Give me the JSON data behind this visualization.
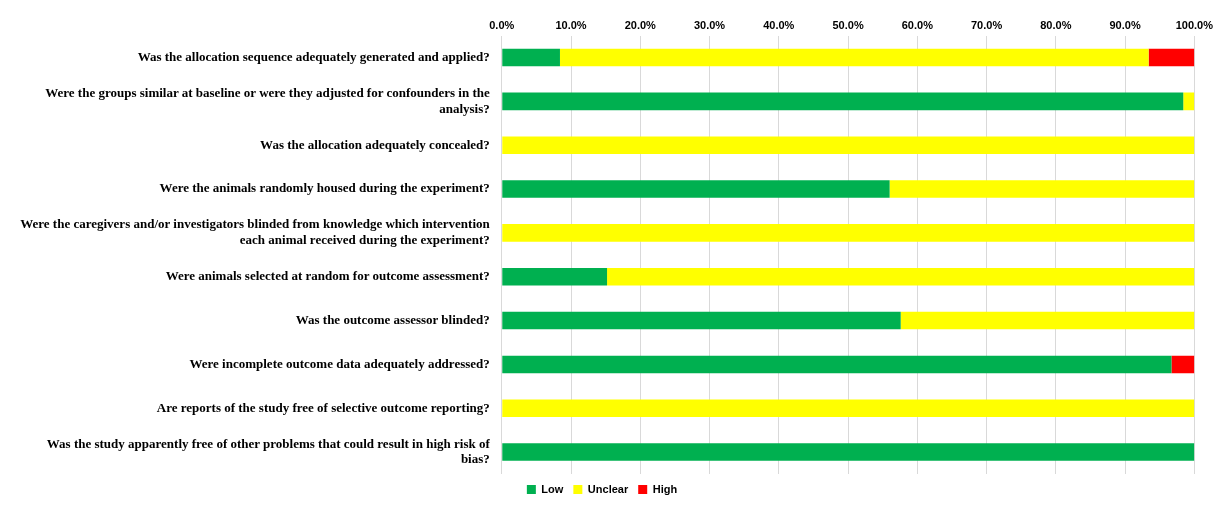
{
  "chart_data": {
    "type": "bar",
    "orientation": "horizontal",
    "stacked": true,
    "categories": [
      "Was the allocation sequence adequately generated and applied?",
      "Were the groups similar at baseline or were they adjusted for confounders in the analysis?",
      "Was the allocation adequately concealed?",
      "Were the animals randomly housed during the experiment?",
      "Were the caregivers and/or investigators blinded from knowledge which intervention each animal received during the experiment?",
      "Were animals selected at random for outcome assessment?",
      "Was the outcome assessor blinded?",
      "Were incomplete outcome data adequately addressed?",
      "Are reports of the study free of selective outcome reporting?",
      "Was the study apparently free of other problems that could result in high risk of bias?"
    ],
    "series": [
      {
        "name": "Low",
        "color": "#00b050",
        "values": [
          8.4,
          98.4,
          0,
          56,
          0,
          15.2,
          57.6,
          96.7,
          0,
          100
        ]
      },
      {
        "name": "Unclear",
        "color": "#ffff00",
        "values": [
          85.0,
          1.6,
          100,
          44,
          100,
          84.8,
          42.4,
          0,
          100,
          0
        ]
      },
      {
        "name": "High",
        "color": "#ff0000",
        "values": [
          6.6,
          0,
          0,
          0,
          0,
          0,
          0,
          3.3,
          0,
          0
        ]
      }
    ],
    "xlim": [
      0,
      100
    ],
    "xticks": [
      {
        "value": 0,
        "label": "0.0%"
      },
      {
        "value": 10,
        "label": "10.0%"
      },
      {
        "value": 20,
        "label": "20.0%"
      },
      {
        "value": 30,
        "label": "30.0%"
      },
      {
        "value": 40,
        "label": "40.0%"
      },
      {
        "value": 50,
        "label": "50.0%"
      },
      {
        "value": 60,
        "label": "60.0%"
      },
      {
        "value": 70,
        "label": "70.0%"
      },
      {
        "value": 80,
        "label": "80.0%"
      },
      {
        "value": 90,
        "label": "90.0%"
      },
      {
        "value": 100,
        "label": "100.0%"
      }
    ],
    "grid": "x",
    "legend": "bottom"
  }
}
